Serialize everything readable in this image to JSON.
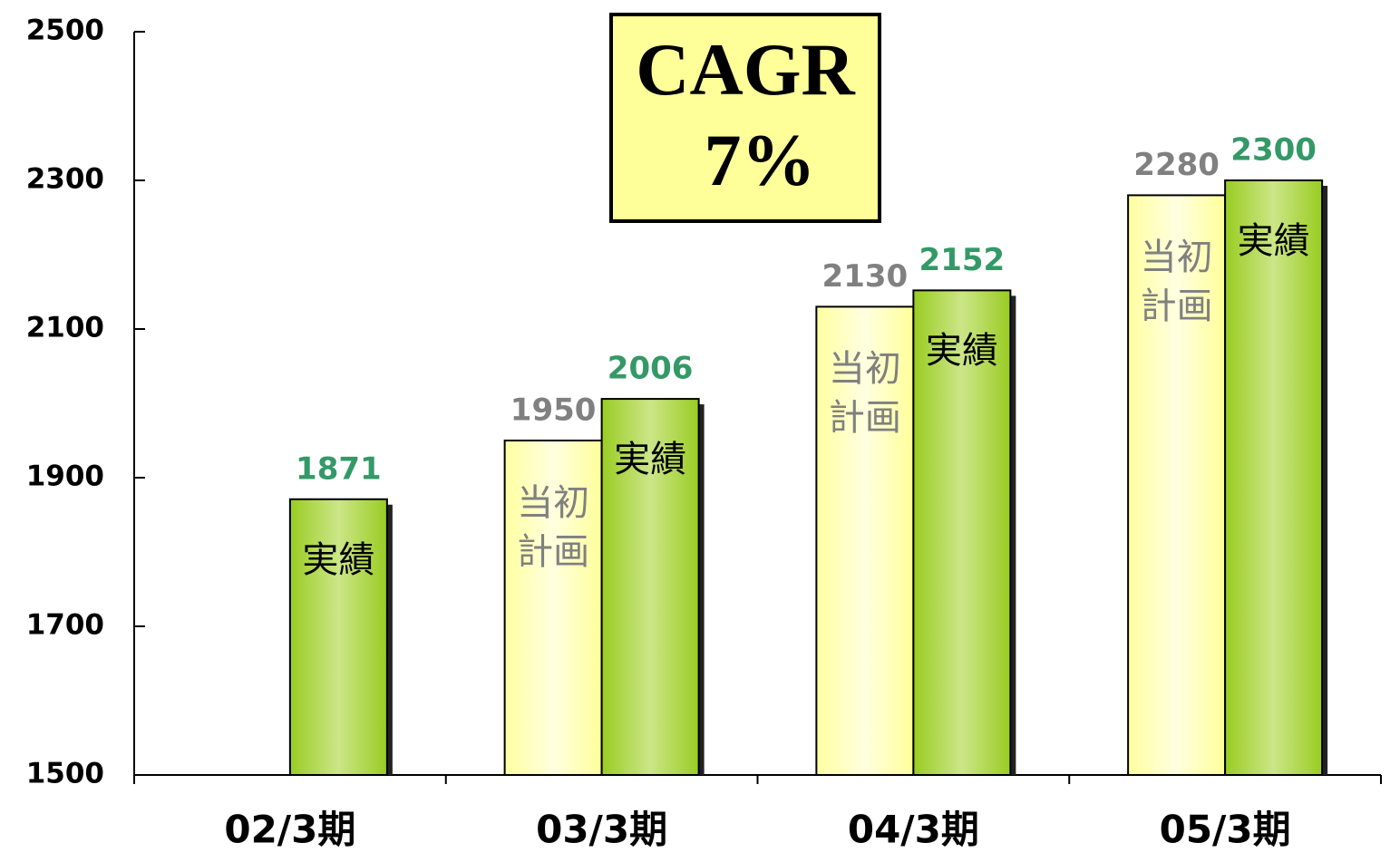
{
  "chart_data": {
    "type": "bar",
    "categories": [
      "02/3期",
      "03/3期",
      "04/3期",
      "05/3期"
    ],
    "series": [
      {
        "name": "当初計画",
        "color": "#ffff99",
        "label_color": "#808080",
        "values": [
          null,
          1950,
          2130,
          2280
        ]
      },
      {
        "name": "実績",
        "color": "#99cc33",
        "label_color": "#339966",
        "values": [
          1871,
          2006,
          2152,
          2300
        ]
      }
    ],
    "ylim": [
      1500,
      2500
    ],
    "yticks": [
      1500,
      1700,
      1900,
      2100,
      2300,
      2500
    ],
    "annotations": [
      "CAGR",
      "7%"
    ],
    "annotation_color": "#ffff99"
  }
}
